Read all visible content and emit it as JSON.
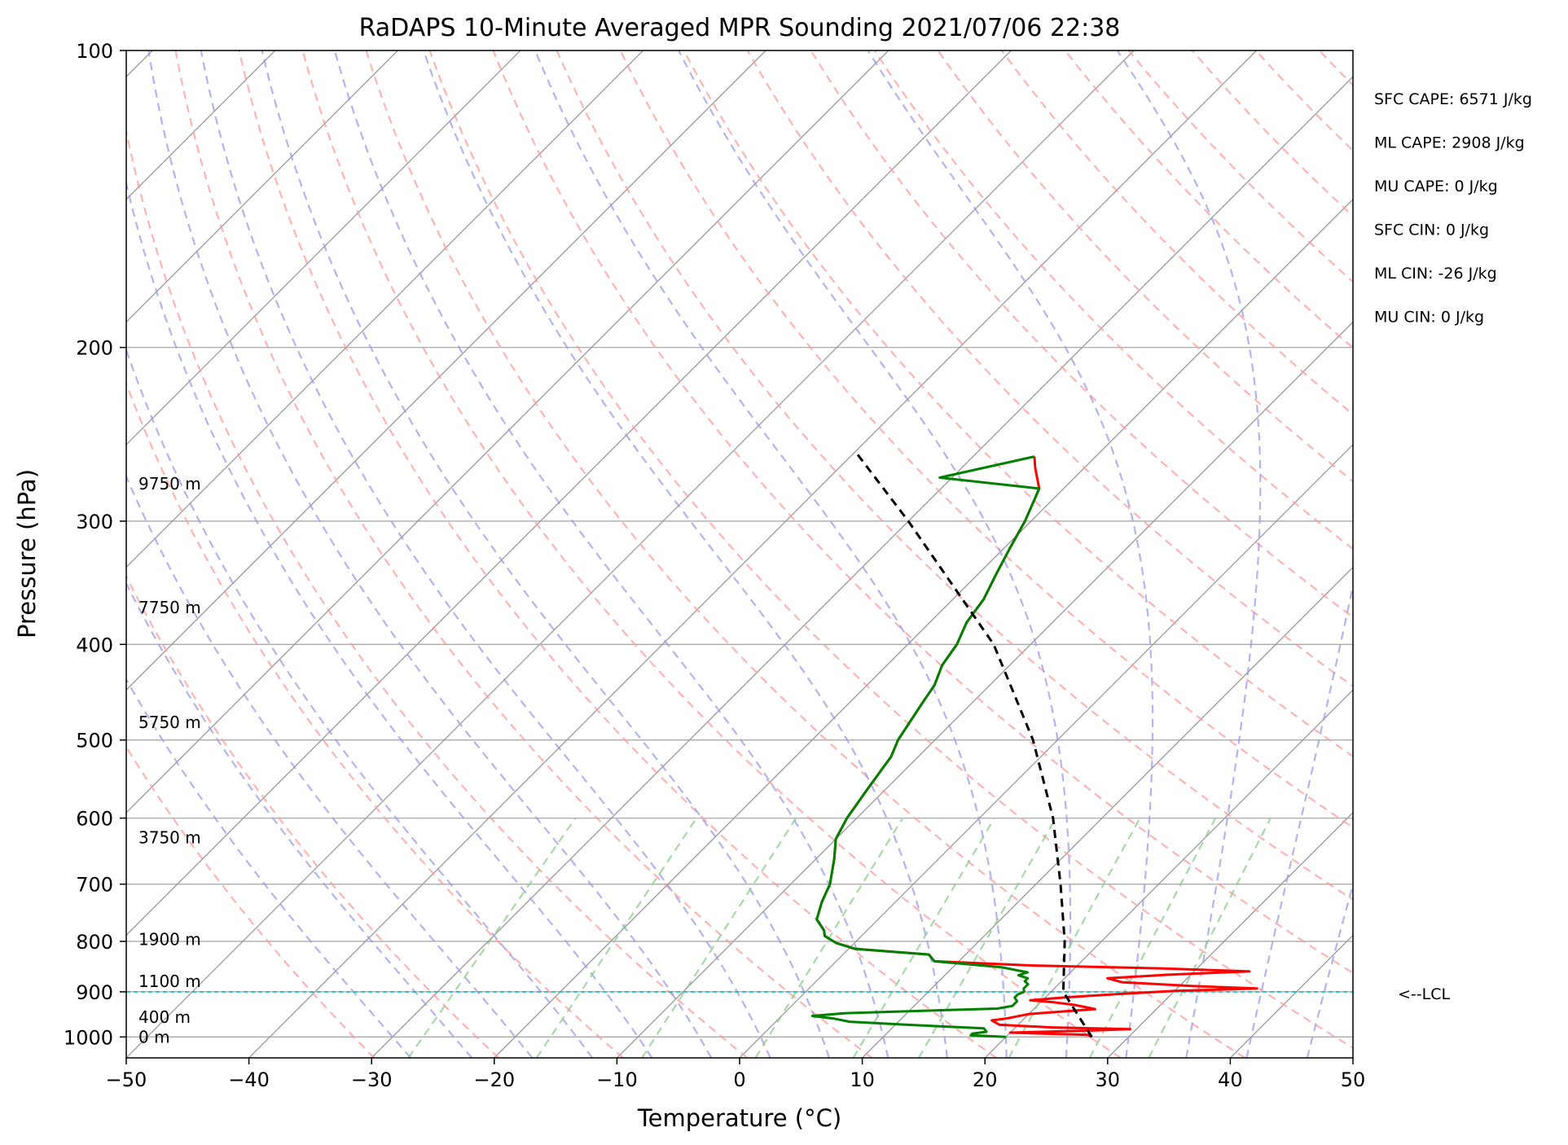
{
  "chart_data": {
    "type": "line",
    "subtype": "skew-t log-p sounding",
    "title": "RaDAPS 10-Minute Averaged MPR Sounding 2021/07/06 22:38",
    "xlabel": "Temperature (°C)",
    "ylabel": "Pressure (hPa)",
    "xlim": [
      -50,
      50
    ],
    "ylim": [
      1050,
      100
    ],
    "y_scale": "log",
    "grid": true,
    "x_ticks": [
      -50,
      -40,
      -30,
      -20,
      -10,
      0,
      10,
      20,
      30,
      40,
      50
    ],
    "x_tick_labels": [
      "−50",
      "−40",
      "−30",
      "−20",
      "−10",
      "0",
      "10",
      "20",
      "30",
      "40",
      "50"
    ],
    "y_ticks": [
      1000,
      900,
      800,
      700,
      600,
      500,
      400,
      300,
      200,
      100
    ],
    "y_tick_labels": [
      "1000",
      "900",
      "800",
      "700",
      "600",
      "500",
      "400",
      "300",
      "200",
      "100"
    ],
    "height_labels": [
      {
        "pressure": 1000,
        "text": "0 m"
      },
      {
        "pressure": 955,
        "text": "400 m"
      },
      {
        "pressure": 878,
        "text": "1100 m"
      },
      {
        "pressure": 796,
        "text": "1900 m"
      },
      {
        "pressure": 628,
        "text": "3750 m"
      },
      {
        "pressure": 480,
        "text": "5750 m"
      },
      {
        "pressure": 367,
        "text": "7750 m"
      },
      {
        "pressure": 275,
        "text": "9750 m"
      }
    ],
    "stats": [
      "SFC CAPE: 6571 J/kg",
      "ML CAPE: 2908 J/kg",
      "MU CAPE: 0 J/kg",
      "SFC CIN: 0 J/kg",
      "ML CIN: -26 J/kg",
      "MU CIN: 0 J/kg"
    ],
    "lcl": {
      "pressure": 900,
      "text": "<--LCL"
    },
    "colors": {
      "temperature": "#ff0000",
      "dewpoint": "#008000",
      "parcel": "#000000",
      "lcl": "#00bfbf",
      "dry_adiabat": "#ff9999",
      "moist_adiabat": "#9999ee",
      "mixing_ratio": "#88cc88",
      "isotherm": "#999999",
      "isobar": "#aaaaaa"
    },
    "series": [
      {
        "role": "temperature",
        "points": [
          [
            1000,
            27
          ],
          [
            995,
            26.5
          ],
          [
            990,
            20
          ],
          [
            985,
            26.5
          ],
          [
            982,
            29.5
          ],
          [
            978,
            23
          ],
          [
            972,
            18.5
          ],
          [
            962,
            17.5
          ],
          [
            958,
            18.5
          ],
          [
            948,
            20
          ],
          [
            937,
            25
          ],
          [
            928,
            23
          ],
          [
            922,
            21
          ],
          [
            918,
            19
          ],
          [
            912,
            21.5
          ],
          [
            905,
            25.5
          ],
          [
            898,
            30
          ],
          [
            893,
            36.5
          ],
          [
            888,
            31
          ],
          [
            880,
            25
          ],
          [
            872,
            23.5
          ],
          [
            865,
            28
          ],
          [
            858,
            34.5
          ],
          [
            852,
            27
          ],
          [
            846,
            16
          ],
          [
            838,
            8
          ],
          [
            825,
            7
          ],
          [
            814,
            0.5
          ],
          [
            803,
            -1.5
          ],
          [
            790,
            -3
          ],
          [
            780,
            -3.5
          ],
          [
            760,
            -5
          ],
          [
            730,
            -6
          ],
          [
            700,
            -6.8
          ],
          [
            660,
            -8.5
          ],
          [
            630,
            -10
          ],
          [
            600,
            -10.8
          ],
          [
            560,
            -11.5
          ],
          [
            520,
            -12.2
          ],
          [
            500,
            -13
          ],
          [
            460,
            -14
          ],
          [
            440,
            -14.5
          ],
          [
            420,
            -15.5
          ],
          [
            400,
            -16
          ],
          [
            380,
            -17
          ],
          [
            360,
            -17.5
          ],
          [
            340,
            -18.5
          ],
          [
            320,
            -19.5
          ],
          [
            300,
            -20.5
          ],
          [
            285,
            -21.5
          ],
          [
            278,
            -22
          ],
          [
            265,
            -24
          ],
          [
            258,
            -25
          ]
        ]
      },
      {
        "role": "dewpoint",
        "points": [
          [
            1000,
            20
          ],
          [
            996,
            17
          ],
          [
            992,
            17
          ],
          [
            988,
            18
          ],
          [
            980,
            17.5
          ],
          [
            972,
            11
          ],
          [
            965,
            6
          ],
          [
            958,
            4.5
          ],
          [
            952,
            2.5
          ],
          [
            946,
            5
          ],
          [
            940,
            12
          ],
          [
            936,
            17
          ],
          [
            930,
            18
          ],
          [
            920,
            18
          ],
          [
            912,
            17.5
          ],
          [
            906,
            17.5
          ],
          [
            900,
            17.8
          ],
          [
            893,
            17.5
          ],
          [
            884,
            17.5
          ],
          [
            878,
            17
          ],
          [
            872,
            17
          ],
          [
            866,
            16
          ],
          [
            860,
            16.5
          ],
          [
            850,
            14
          ],
          [
            838,
            8
          ],
          [
            825,
            7
          ],
          [
            814,
            0.5
          ],
          [
            803,
            -1.5
          ],
          [
            790,
            -3
          ],
          [
            780,
            -3.5
          ],
          [
            760,
            -5
          ],
          [
            730,
            -6
          ],
          [
            700,
            -6.8
          ],
          [
            660,
            -8.5
          ],
          [
            630,
            -10
          ],
          [
            600,
            -10.8
          ],
          [
            560,
            -11.5
          ],
          [
            520,
            -12.2
          ],
          [
            500,
            -13
          ],
          [
            460,
            -14
          ],
          [
            440,
            -14.5
          ],
          [
            420,
            -15.5
          ],
          [
            400,
            -16
          ],
          [
            380,
            -17
          ],
          [
            360,
            -17.5
          ],
          [
            340,
            -18.5
          ],
          [
            320,
            -19.5
          ],
          [
            300,
            -20.5
          ],
          [
            285,
            -21.5
          ],
          [
            278,
            -22
          ],
          [
            271,
            -31
          ],
          [
            258,
            -25
          ]
        ]
      },
      {
        "role": "parcel",
        "points": [
          [
            1000,
            27
          ],
          [
            900,
            21
          ],
          [
            800,
            17
          ],
          [
            700,
            12
          ],
          [
            600,
            6
          ],
          [
            500,
            -2
          ],
          [
            400,
            -13
          ],
          [
            300,
            -30
          ],
          [
            255,
            -40
          ]
        ]
      }
    ]
  }
}
